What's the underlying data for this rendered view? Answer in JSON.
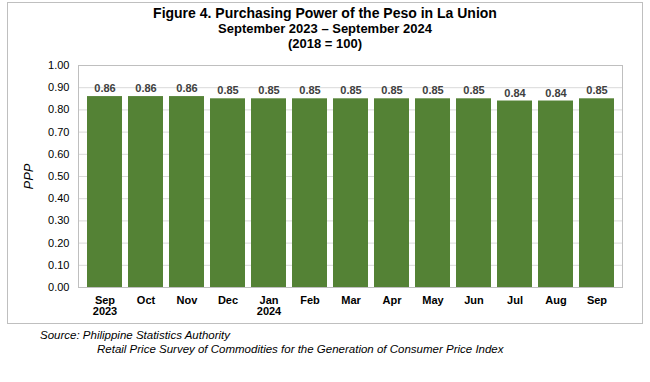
{
  "chart_data": {
    "type": "bar",
    "title": "Figure 4.  Purchasing Power of the Peso in La Union",
    "subtitle": [
      "September 2023 – September 2024",
      "(2018 = 100)"
    ],
    "ylabel": "PPP",
    "categories": [
      "Sep\n2023",
      "Oct",
      "Nov",
      "Dec",
      "Jan\n2024",
      "Feb",
      "Mar",
      "Apr",
      "May",
      "Jun",
      "Jul",
      "Aug",
      "Sep"
    ],
    "values": [
      0.86,
      0.86,
      0.86,
      0.85,
      0.85,
      0.85,
      0.85,
      0.85,
      0.85,
      0.85,
      0.84,
      0.84,
      0.85
    ],
    "color": "#548235",
    "ylim": [
      0,
      1
    ],
    "yticks": [
      {
        "value": 0,
        "label": "0.00"
      },
      {
        "value": 0.1,
        "label": "0.10"
      },
      {
        "value": 0.2,
        "label": "0.20"
      },
      {
        "value": 0.3,
        "label": "0.30"
      },
      {
        "value": 0.4,
        "label": "0.40"
      },
      {
        "value": 0.5,
        "label": "0.50"
      },
      {
        "value": 0.6,
        "label": "0.60"
      },
      {
        "value": 0.7,
        "label": "0.70"
      },
      {
        "value": 0.8,
        "label": "0.80"
      },
      {
        "value": 0.9,
        "label": "0.90"
      },
      {
        "value": 1,
        "label": "1.00"
      }
    ],
    "grid": true,
    "data_labels": true,
    "source": [
      "Source:  Philippine Statistics Authority",
      "Retail Price Survey of Commodities for the Generation of Consumer Price Index"
    ]
  }
}
